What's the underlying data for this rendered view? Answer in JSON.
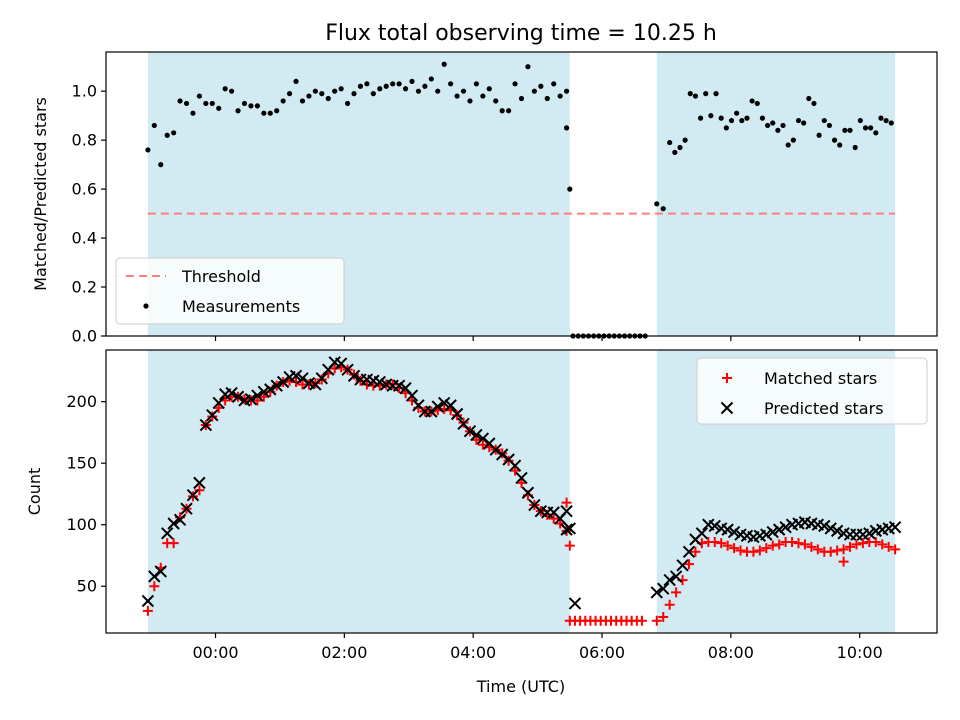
{
  "chart_data": {
    "title": "Flux total observing time = 10.25 h",
    "type": "scatter",
    "xlabel": "Time (UTC)",
    "x_unit": "hours (UTC)",
    "xlim": [
      -1.7,
      11.2
    ],
    "xticks": [
      0,
      2,
      4,
      6,
      8,
      10
    ],
    "xtick_labels": [
      "00:00",
      "02:00",
      "04:00",
      "06:00",
      "08:00",
      "10:00"
    ],
    "observing_windows": [
      [
        -1.05,
        5.5
      ],
      [
        6.85,
        10.55
      ]
    ],
    "window_color": "#add8e6",
    "panels": [
      {
        "ylabel": "Matched/Predicted stars",
        "ylim": [
          0.0,
          1.16
        ],
        "yticks": [
          0.0,
          0.2,
          0.4,
          0.6,
          0.8,
          1.0
        ],
        "ytick_labels": [
          "0.0",
          "0.2",
          "0.4",
          "0.6",
          "0.8",
          "1.0"
        ],
        "threshold": {
          "name": "Threshold",
          "value": 0.5,
          "color": "#ff7f7f"
        },
        "legend": {
          "position": "lower-left",
          "entries": [
            "Threshold",
            "Measurements"
          ]
        },
        "series": [
          {
            "name": "Measurements",
            "marker": "dot",
            "color": "#000000",
            "points": [
              [
                -1.05,
                0.76
              ],
              [
                -0.95,
                0.86
              ],
              [
                -0.85,
                0.7
              ],
              [
                -0.75,
                0.82
              ],
              [
                -0.65,
                0.83
              ],
              [
                -0.55,
                0.96
              ],
              [
                -0.45,
                0.95
              ],
              [
                -0.35,
                0.91
              ],
              [
                -0.25,
                0.98
              ],
              [
                -0.15,
                0.95
              ],
              [
                -0.05,
                0.95
              ],
              [
                0.05,
                0.93
              ],
              [
                0.15,
                1.01
              ],
              [
                0.25,
                1.0
              ],
              [
                0.35,
                0.92
              ],
              [
                0.45,
                0.95
              ],
              [
                0.55,
                0.94
              ],
              [
                0.65,
                0.94
              ],
              [
                0.75,
                0.91
              ],
              [
                0.85,
                0.91
              ],
              [
                0.95,
                0.92
              ],
              [
                1.05,
                0.96
              ],
              [
                1.15,
                0.99
              ],
              [
                1.25,
                1.04
              ],
              [
                1.35,
                0.96
              ],
              [
                1.45,
                0.98
              ],
              [
                1.55,
                1.0
              ],
              [
                1.65,
                0.99
              ],
              [
                1.75,
                0.97
              ],
              [
                1.85,
                1.0
              ],
              [
                1.95,
                1.01
              ],
              [
                2.05,
                0.95
              ],
              [
                2.15,
                0.99
              ],
              [
                2.25,
                1.02
              ],
              [
                2.35,
                1.03
              ],
              [
                2.45,
                0.99
              ],
              [
                2.55,
                1.01
              ],
              [
                2.65,
                1.02
              ],
              [
                2.75,
                1.03
              ],
              [
                2.85,
                1.03
              ],
              [
                2.95,
                1.01
              ],
              [
                3.05,
                1.04
              ],
              [
                3.15,
                1.0
              ],
              [
                3.25,
                1.02
              ],
              [
                3.35,
                1.05
              ],
              [
                3.45,
                1.0
              ],
              [
                3.55,
                1.11
              ],
              [
                3.65,
                1.03
              ],
              [
                3.75,
                0.98
              ],
              [
                3.85,
                1.0
              ],
              [
                3.95,
                0.96
              ],
              [
                4.05,
                1.03
              ],
              [
                4.15,
                0.98
              ],
              [
                4.25,
                1.01
              ],
              [
                4.35,
                0.96
              ],
              [
                4.45,
                0.92
              ],
              [
                4.55,
                0.92
              ],
              [
                4.65,
                1.03
              ],
              [
                4.75,
                0.97
              ],
              [
                4.85,
                1.1
              ],
              [
                4.95,
                1.0
              ],
              [
                5.05,
                1.02
              ],
              [
                5.15,
                0.97
              ],
              [
                5.25,
                1.03
              ],
              [
                5.35,
                0.98
              ],
              [
                5.45,
                1.0
              ]
            ]
          }
        ]
      },
      {
        "ylabel": "Count",
        "ylim": [
          12,
          242
        ],
        "yticks": [
          50,
          100,
          150,
          200
        ],
        "ytick_labels": [
          "50",
          "100",
          "150",
          "200"
        ],
        "legend": {
          "position": "upper-right",
          "entries": [
            "Matched stars",
            "Predicted stars"
          ]
        },
        "series": [
          {
            "name": "Matched stars",
            "marker": "plus",
            "color": "#ff0000",
            "points": []
          },
          {
            "name": "Predicted stars",
            "marker": "x",
            "color": "#000000",
            "points": []
          }
        ]
      }
    ]
  }
}
